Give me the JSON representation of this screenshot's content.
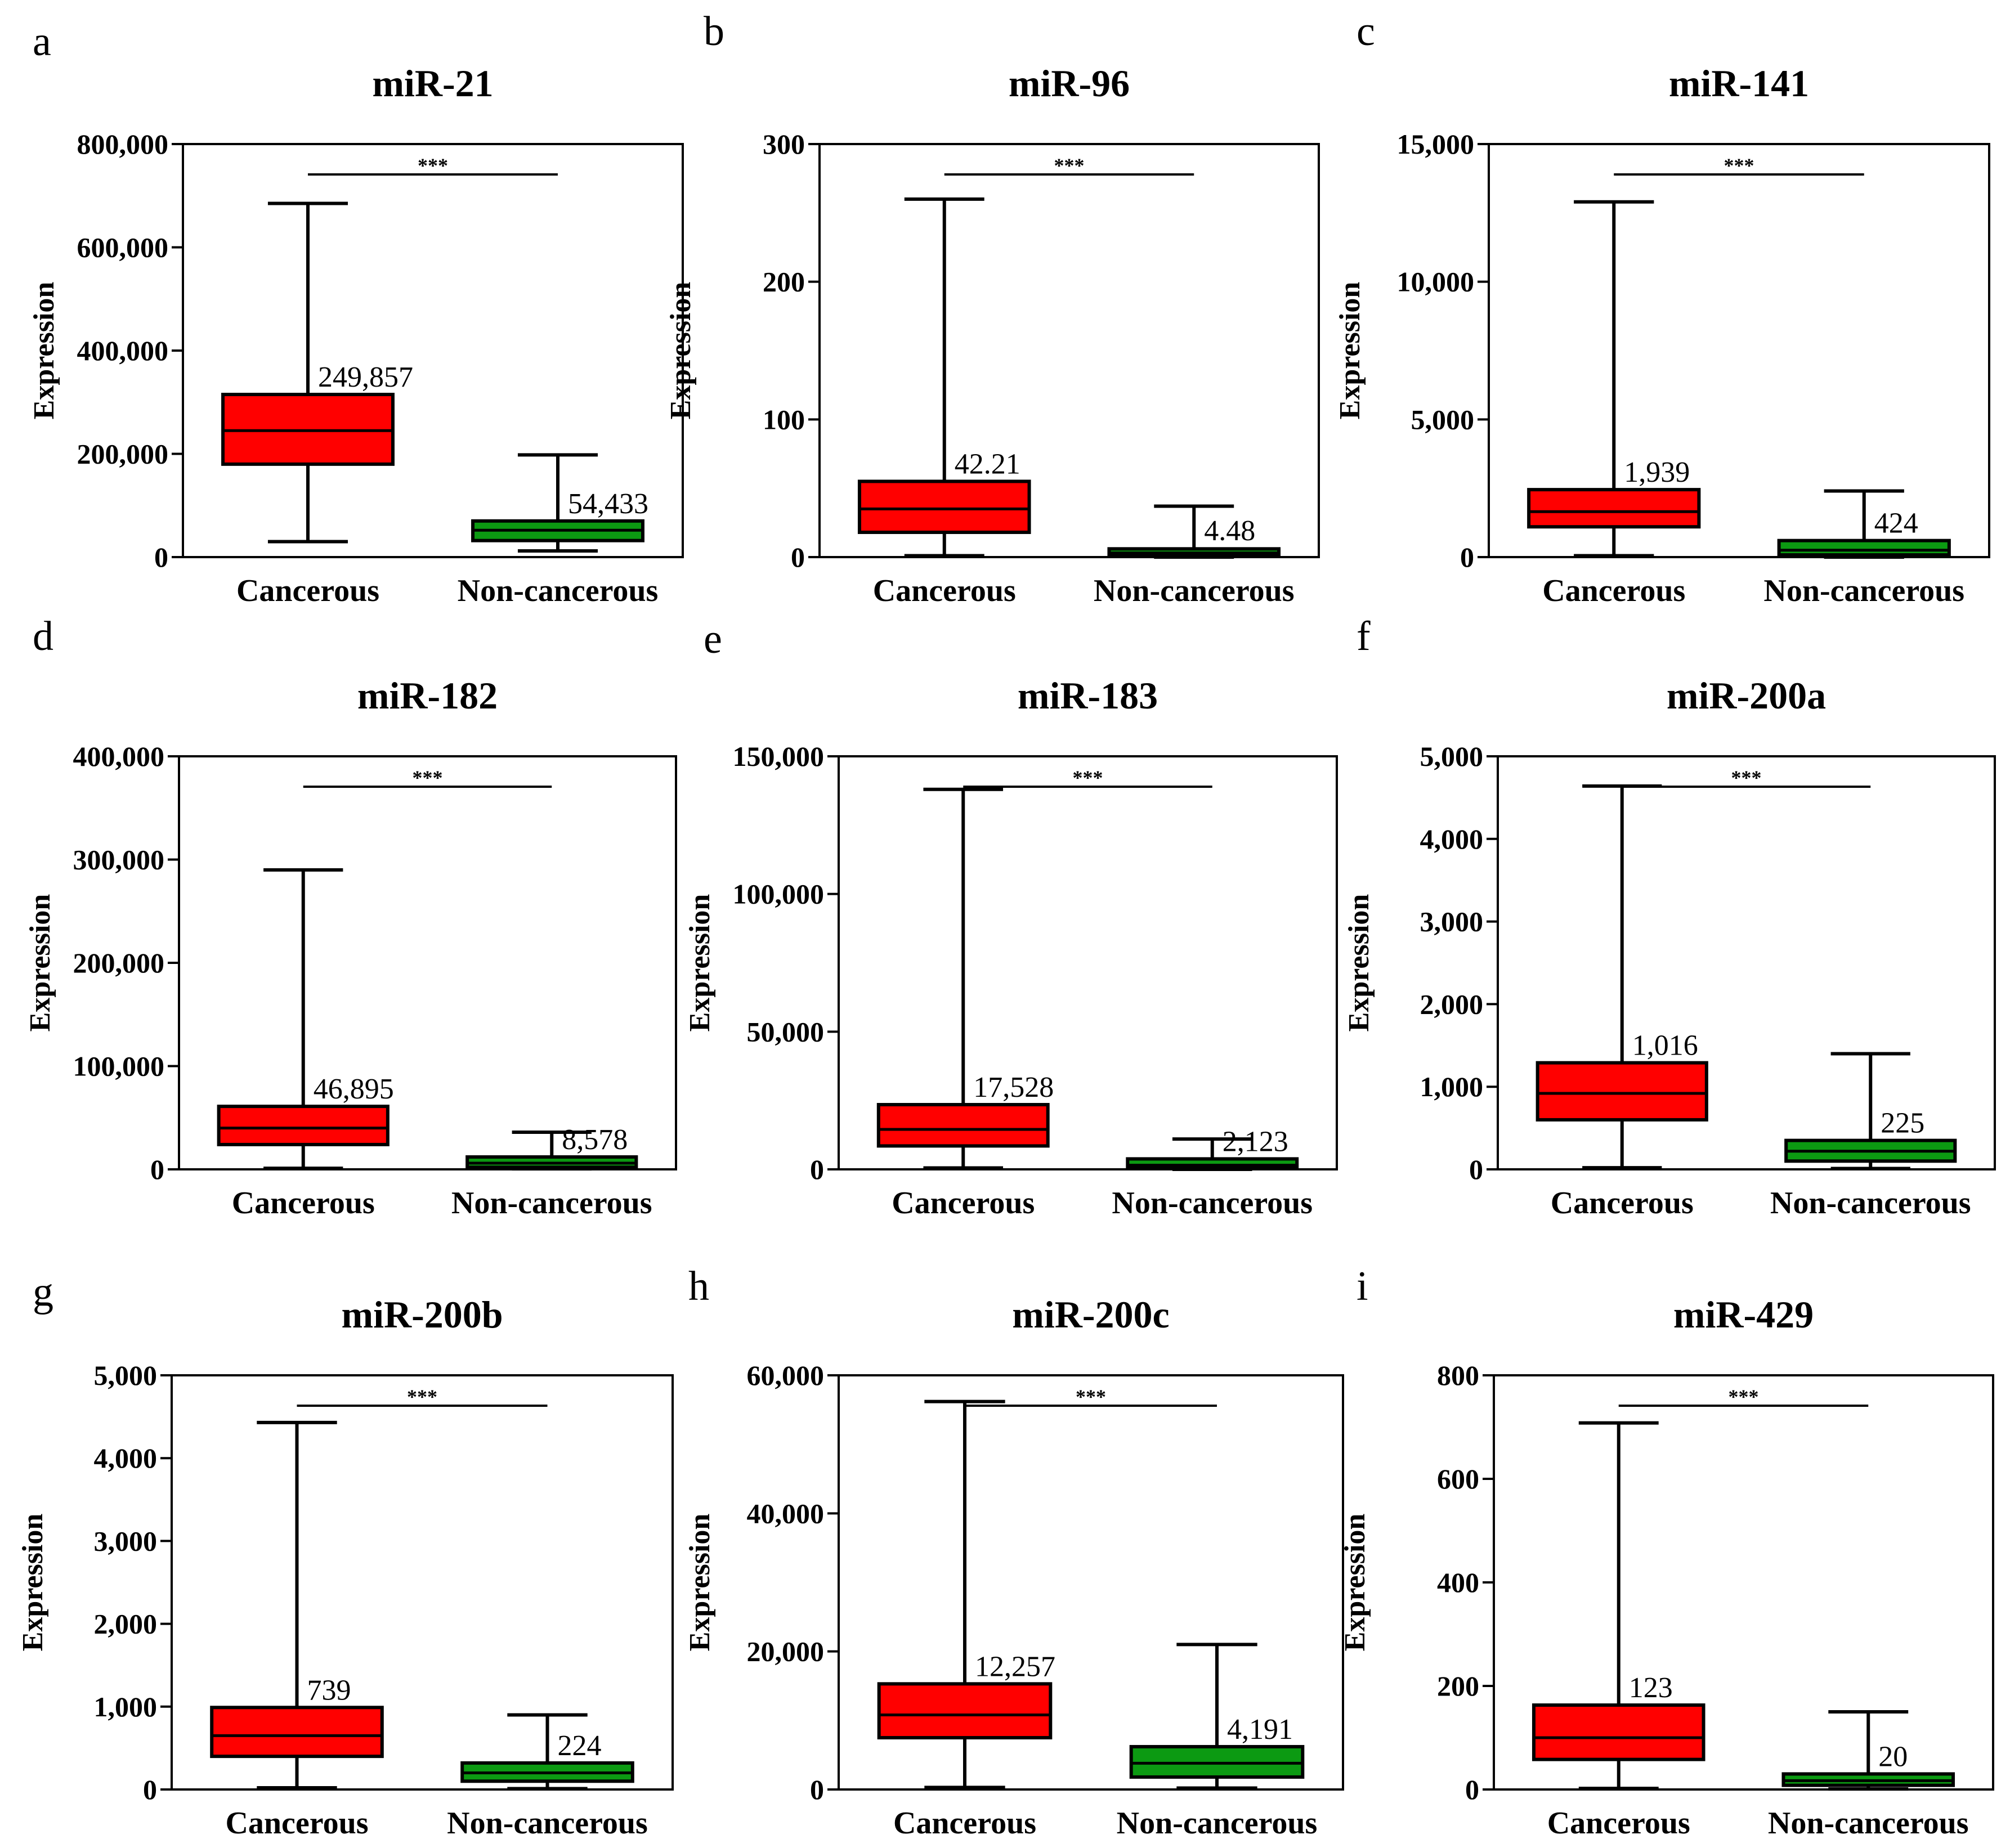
{
  "colors": {
    "cancerous": "#ff0000",
    "non_cancerous": "#0c9a12",
    "axis": "#000000"
  },
  "chart_data": [
    {
      "type": "box",
      "panel": "a",
      "title": "miR-21",
      "ylabel": "Expression",
      "ylim": [
        0,
        800000
      ],
      "yticks": [
        0,
        200000,
        400000,
        600000,
        800000
      ],
      "ytick_labels": [
        "0",
        "200,000",
        "400,000",
        "600,000",
        "800,000"
      ],
      "categories": [
        "Cancerous",
        "Non-cancerous"
      ],
      "boxes": [
        {
          "min": 30000,
          "q1": 180000,
          "median": 245000,
          "q3": 315000,
          "max": 685000,
          "label": "249,857"
        },
        {
          "min": 12000,
          "q1": 32000,
          "median": 52000,
          "q3": 70000,
          "max": 198000,
          "label": "54,433"
        }
      ],
      "significance": "***"
    },
    {
      "type": "box",
      "panel": "b",
      "title": "miR-96",
      "ylabel": "Expression",
      "ylim": [
        0,
        300
      ],
      "yticks": [
        0,
        100,
        200,
        300
      ],
      "ytick_labels": [
        "0",
        "100",
        "200",
        "300"
      ],
      "categories": [
        "Cancerous",
        "Non-cancerous"
      ],
      "boxes": [
        {
          "min": 1,
          "q1": 18,
          "median": 35,
          "q3": 55,
          "max": 260,
          "label": "42.21"
        },
        {
          "min": 0,
          "q1": 1,
          "median": 3,
          "q3": 6,
          "max": 37,
          "label": "4.48"
        }
      ],
      "significance": "***"
    },
    {
      "type": "box",
      "panel": "c",
      "title": "miR-141",
      "ylabel": "Expression",
      "ylim": [
        0,
        15000
      ],
      "yticks": [
        0,
        5000,
        10000,
        15000
      ],
      "ytick_labels": [
        "0",
        "5,000",
        "10,000",
        "15,000"
      ],
      "categories": [
        "Cancerous",
        "Non-cancerous"
      ],
      "boxes": [
        {
          "min": 50,
          "q1": 1100,
          "median": 1650,
          "q3": 2450,
          "max": 12900,
          "label": "1,939"
        },
        {
          "min": 0,
          "q1": 80,
          "median": 250,
          "q3": 600,
          "max": 2400,
          "label": "424"
        }
      ],
      "significance": "***"
    },
    {
      "type": "box",
      "panel": "d",
      "title": "miR-182",
      "ylabel": "Expression",
      "ylim": [
        0,
        400000
      ],
      "yticks": [
        0,
        100000,
        200000,
        300000,
        400000
      ],
      "ytick_labels": [
        "0",
        "100,000",
        "200,000",
        "300,000",
        "400,000"
      ],
      "categories": [
        "Cancerous",
        "Non-cancerous"
      ],
      "boxes": [
        {
          "min": 1000,
          "q1": 24000,
          "median": 40000,
          "q3": 61000,
          "max": 290000,
          "label": "46,895"
        },
        {
          "min": 500,
          "q1": 2000,
          "median": 6000,
          "q3": 12000,
          "max": 36000,
          "label": "8,578"
        }
      ],
      "significance": "***"
    },
    {
      "type": "box",
      "panel": "e",
      "title": "miR-183",
      "ylabel": "Expression",
      "ylim": [
        0,
        150000
      ],
      "yticks": [
        0,
        50000,
        100000,
        150000
      ],
      "ytick_labels": [
        "0",
        "50,000",
        "100,000",
        "150,000"
      ],
      "categories": [
        "Cancerous",
        "Non-cancerous"
      ],
      "boxes": [
        {
          "min": 500,
          "q1": 8500,
          "median": 14500,
          "q3": 23500,
          "max": 138000,
          "label": "17,528"
        },
        {
          "min": 0,
          "q1": 500,
          "median": 1500,
          "q3": 3800,
          "max": 11000,
          "label": "2,123"
        }
      ],
      "significance": "***"
    },
    {
      "type": "box",
      "panel": "f",
      "title": "miR-200a",
      "ylabel": "Expression",
      "ylim": [
        0,
        5000
      ],
      "yticks": [
        0,
        1000,
        2000,
        3000,
        4000,
        5000
      ],
      "ytick_labels": [
        "0",
        "1,000",
        "2,000",
        "3,000",
        "4,000",
        "5,000"
      ],
      "categories": [
        "Cancerous",
        "Non-cancerous"
      ],
      "boxes": [
        {
          "min": 20,
          "q1": 600,
          "median": 920,
          "q3": 1290,
          "max": 4640,
          "label": "1,016"
        },
        {
          "min": 10,
          "q1": 100,
          "median": 220,
          "q3": 350,
          "max": 1400,
          "label": "225"
        }
      ],
      "significance": "***"
    },
    {
      "type": "box",
      "panel": "g",
      "title": "miR-200b",
      "ylabel": "Expression",
      "ylim": [
        0,
        5000
      ],
      "yticks": [
        0,
        1000,
        2000,
        3000,
        4000,
        5000
      ],
      "ytick_labels": [
        "0",
        "1,000",
        "2,000",
        "3,000",
        "4,000",
        "5,000"
      ],
      "categories": [
        "Cancerous",
        "Non-cancerous"
      ],
      "boxes": [
        {
          "min": 20,
          "q1": 400,
          "median": 650,
          "q3": 990,
          "max": 4430,
          "label": "739"
        },
        {
          "min": 10,
          "q1": 100,
          "median": 200,
          "q3": 320,
          "max": 900,
          "label": "224"
        }
      ],
      "significance": "***"
    },
    {
      "type": "box",
      "panel": "h",
      "title": "miR-200c",
      "ylabel": "Expression",
      "ylim": [
        0,
        60000
      ],
      "yticks": [
        0,
        20000,
        40000,
        60000
      ],
      "ytick_labels": [
        "0",
        "20,000",
        "40,000",
        "60,000"
      ],
      "categories": [
        "Cancerous",
        "Non-cancerous"
      ],
      "boxes": [
        {
          "min": 300,
          "q1": 7500,
          "median": 10800,
          "q3": 15300,
          "max": 56200,
          "label": "12,257"
        },
        {
          "min": 200,
          "q1": 1800,
          "median": 3800,
          "q3": 6200,
          "max": 21000,
          "label": "4,191"
        }
      ],
      "significance": "***"
    },
    {
      "type": "box",
      "panel": "i",
      "title": "miR-429",
      "ylabel": "Expression",
      "ylim": [
        0,
        800
      ],
      "yticks": [
        0,
        200,
        400,
        600,
        800
      ],
      "ytick_labels": [
        "0",
        "200",
        "400",
        "600",
        "800"
      ],
      "categories": [
        "Cancerous",
        "Non-cancerous"
      ],
      "boxes": [
        {
          "min": 2,
          "q1": 58,
          "median": 100,
          "q3": 163,
          "max": 708,
          "label": "123"
        },
        {
          "min": 1,
          "q1": 8,
          "median": 17,
          "q3": 30,
          "max": 150,
          "label": "20"
        }
      ],
      "significance": "***"
    }
  ]
}
